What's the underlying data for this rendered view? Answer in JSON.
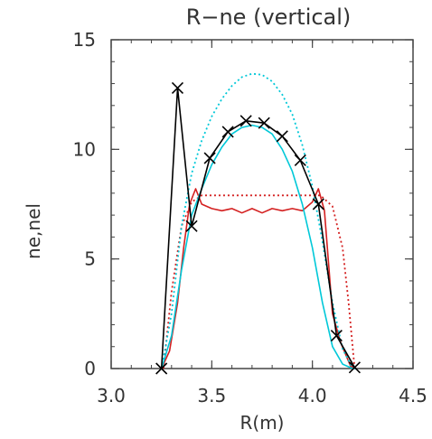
{
  "chart_data": {
    "type": "line",
    "title": "R−ne (vertical)",
    "xlabel": "R(m)",
    "ylabel": "ne,nel",
    "xlim": [
      3.0,
      4.5
    ],
    "ylim": [
      0,
      15
    ],
    "x_ticks": [
      "3.0",
      "3.5",
      "4.0",
      "4.5"
    ],
    "y_ticks": [
      "0",
      "5",
      "10",
      "15"
    ],
    "grid": false,
    "series": [
      {
        "style": "solid",
        "color": "#000000",
        "marker": "x",
        "x": [
          3.25,
          3.33,
          3.4,
          3.49,
          3.58,
          3.67,
          3.76,
          3.85,
          3.94,
          4.03,
          4.12,
          4.21
        ],
        "y": [
          0.0,
          12.8,
          6.5,
          9.6,
          10.8,
          11.3,
          11.2,
          10.6,
          9.5,
          7.5,
          1.5,
          0.05
        ]
      },
      {
        "style": "solid",
        "color": "#00c8d8",
        "x": [
          3.25,
          3.3,
          3.35,
          3.4,
          3.45,
          3.5,
          3.55,
          3.6,
          3.65,
          3.7,
          3.75,
          3.8,
          3.85,
          3.9,
          3.95,
          4.0,
          4.05,
          4.1,
          4.15,
          4.2,
          4.22
        ],
        "y": [
          0.0,
          1.5,
          4.5,
          7.0,
          8.2,
          9.3,
          10.1,
          10.7,
          11.0,
          11.1,
          11.0,
          10.7,
          10.0,
          9.0,
          7.5,
          5.5,
          3.0,
          1.0,
          0.2,
          0.0,
          0.0
        ]
      },
      {
        "style": "dotted",
        "color": "#00c8d8",
        "x": [
          3.25,
          3.3,
          3.35,
          3.4,
          3.45,
          3.5,
          3.55,
          3.6,
          3.65,
          3.7,
          3.75,
          3.8,
          3.85,
          3.9,
          3.95,
          4.0,
          4.05,
          4.1,
          4.15,
          4.2
        ],
        "y": [
          0.0,
          2.5,
          6.5,
          8.9,
          10.4,
          11.5,
          12.3,
          12.9,
          13.3,
          13.45,
          13.4,
          13.1,
          12.5,
          11.6,
          10.2,
          8.3,
          5.8,
          3.0,
          0.9,
          0.0
        ]
      },
      {
        "style": "solid",
        "color": "#d42020",
        "x": [
          3.25,
          3.29,
          3.33,
          3.36,
          3.39,
          3.42,
          3.45,
          3.5,
          3.55,
          3.6,
          3.65,
          3.7,
          3.75,
          3.8,
          3.85,
          3.9,
          3.95,
          4.0,
          4.03,
          4.06,
          4.1,
          4.14,
          4.19,
          4.22
        ],
        "y": [
          0.0,
          0.8,
          3.0,
          5.5,
          7.5,
          8.2,
          7.5,
          7.3,
          7.2,
          7.3,
          7.1,
          7.3,
          7.1,
          7.3,
          7.2,
          7.3,
          7.2,
          7.6,
          8.2,
          7.2,
          2.5,
          1.2,
          0.1,
          0.0
        ]
      },
      {
        "style": "dotted",
        "color": "#d42020",
        "x": [
          3.26,
          3.3,
          3.35,
          3.4,
          3.45,
          4.04,
          4.1,
          4.15,
          4.18,
          4.21
        ],
        "y": [
          0.0,
          3.5,
          6.5,
          7.6,
          7.9,
          7.9,
          7.4,
          5.5,
          3.0,
          0.0
        ]
      }
    ]
  }
}
